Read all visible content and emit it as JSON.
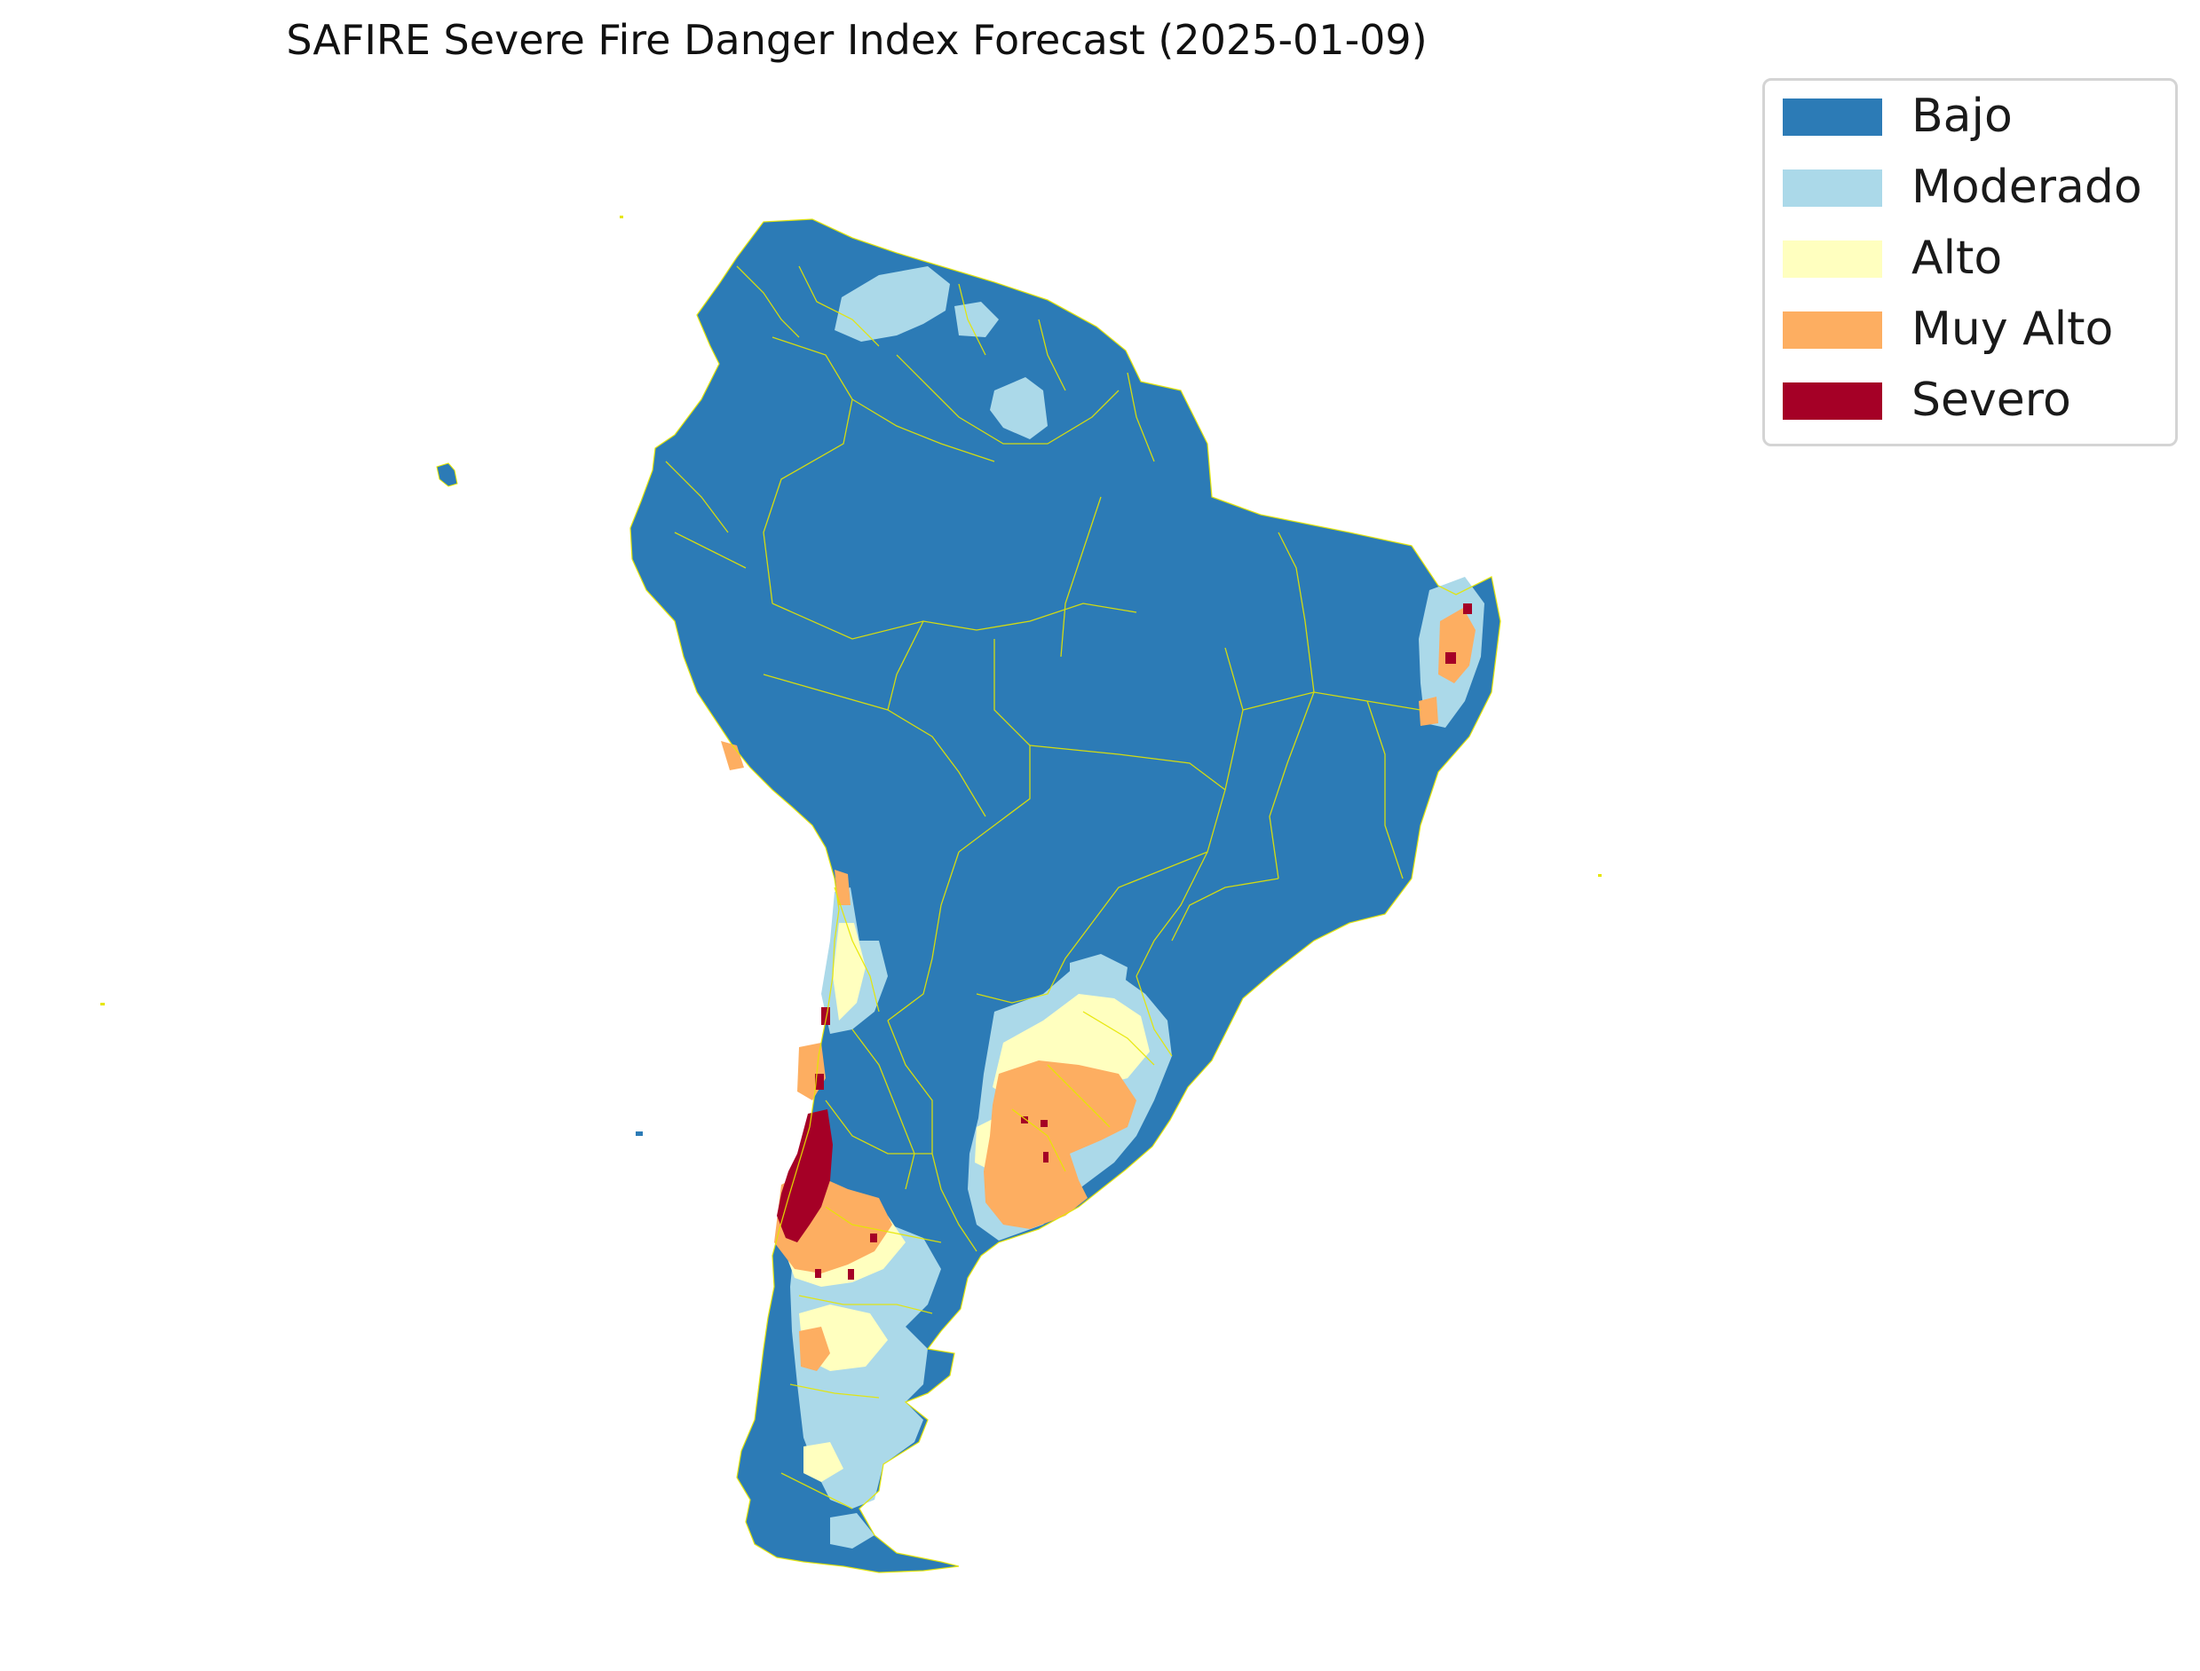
{
  "title": "SAFIRE Severe Fire Danger Index Forecast (2025-01-09)",
  "legend": {
    "items": [
      {
        "label": "Bajo",
        "color": "#2c7bb6"
      },
      {
        "label": "Moderado",
        "color": "#abd9e9"
      },
      {
        "label": "Alto",
        "color": "#ffffbf"
      },
      {
        "label": "Muy Alto",
        "color": "#fdae61"
      },
      {
        "label": "Severo",
        "color": "#a50026"
      }
    ]
  },
  "map": {
    "region": "South America",
    "boundary_color": "#e6e600"
  }
}
